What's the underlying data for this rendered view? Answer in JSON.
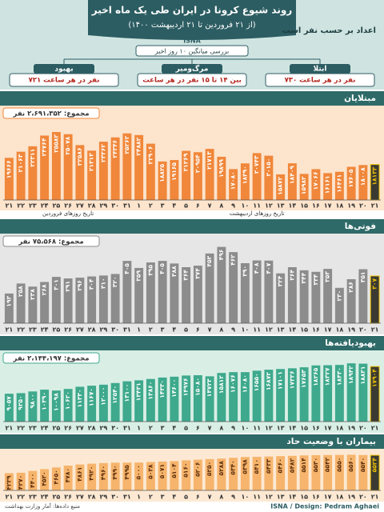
{
  "header": {
    "title": "روند شیوع کرونا در ایران طی یک ماه اخیر",
    "subtitle": "(از ۲۱ فروردین تا ۲۱ اردیبهشت ۱۴۰۰)",
    "brand": "ISNA",
    "units_note": "اعداد بر حسب نفر است",
    "average_title": "بررسی میانگین ۱۰ روز اخیر",
    "boxes": [
      {
        "title": "بهبود",
        "text": "۷۲۱ نفر در هر ساعت"
      },
      {
        "title": "مرگ‌ومیر",
        "text": "بین ۱۴ تا ۱۵ نفر در هر ساعت"
      },
      {
        "title": "ابتلا",
        "text": "۷۳۰ نفر در هر ساعت"
      }
    ]
  },
  "chart_data": [
    {
      "type": "bar",
      "title": "مبتلایان",
      "total": "مجموع: ۲،۶۹۱،۳۵۲ نفر",
      "color": "#f0873a",
      "x_labels": [
        "تاریخ روزهای فروردین",
        "تاریخ روزهای اردیبهشت"
      ],
      "categories": [
        "۲۱",
        "۲۲",
        "۲۳",
        "۲۴",
        "۲۵",
        "۲۶",
        "۲۷",
        "۲۸",
        "۲۹",
        "۳۰",
        "۳۱",
        "۱",
        "۲",
        "۳",
        "۴",
        "۵",
        "۶",
        "۷",
        "۸",
        "۹",
        "۱۰",
        "۱۱",
        "۱۲",
        "۱۳",
        "۱۴",
        "۱۵",
        "۱۶",
        "۱۷",
        "۱۸",
        "۱۹",
        "۲۰",
        "۲۱"
      ],
      "values": [
        19666,
        21063,
        22311,
        24764,
        25582,
        25078,
        22586,
        21313,
        23362,
        24346,
        25262,
        24882,
        22906,
        18825,
        19165,
        21269,
        20954,
        21713,
        19899,
        17080,
        18390,
        20743,
        20150,
        15872,
        18409,
        15982,
        17066,
        16161,
        16461,
        17605,
        18008,
        18133
      ],
      "value_labels": [
        "۱۹۶۶۶",
        "۲۱۰۶۳",
        "۲۲۳۱۱",
        "۲۴۷۶۴",
        "۲۵۵۸۲",
        "۲۵۰۷۸",
        "۲۲۵۸۶",
        "۲۱۳۱۳",
        "۲۳۳۶۲",
        "۲۴۳۴۶",
        "۲۵۲۶۲",
        "۲۴۸۸۲",
        "۲۲۹۰۶",
        "۱۸۸۲۵",
        "۱۹۱۶۵",
        "۲۱۲۶۹",
        "۲۰۹۵۴",
        "۲۱۷۱۳",
        "۱۹۸۹۹",
        "۱۷۰۸۰",
        "۱۸۳۹۰",
        "۲۰۷۴۳",
        "۲۰۱۵۰",
        "۱۵۸۷۲",
        "۱۸۴۰۹",
        "۱۵۹۸۲",
        "۱۷۰۶۶",
        "۱۶۱۶۱",
        "۱۶۴۶۱",
        "۱۷۶۰۵",
        "۱۸۰۰۸",
        "۱۸۱۳۳"
      ],
      "ylim": [
        10000,
        26500
      ]
    },
    {
      "type": "bar",
      "title": "فوتی‌ها",
      "total": "مجموع: ۷۵،۵۶۸ نفر",
      "color": "#8c8c8c",
      "categories": [
        "۲۱",
        "۲۲",
        "۲۳",
        "۲۴",
        "۲۵",
        "۲۶",
        "۲۷",
        "۲۸",
        "۲۹",
        "۳۰",
        "۳۱",
        "۱",
        "۲",
        "۳",
        "۴",
        "۵",
        "۶",
        "۷",
        "۸",
        "۹",
        "۱۰",
        "۱۱",
        "۱۲",
        "۱۳",
        "۱۴",
        "۱۵",
        "۱۶",
        "۱۷",
        "۱۸",
        "۱۹",
        "۲۰",
        "۲۱"
      ],
      "values": [
        193,
        258,
        238,
        268,
        301,
        291,
        296,
        304,
        310,
        320,
        405,
        359,
        395,
        405,
        388,
        364,
        374,
        453,
        496,
        462,
        390,
        408,
        407,
        324,
        364,
        344,
        334,
        353,
        230,
        286,
        351,
        307
      ],
      "value_labels": [
        "۱۹۳",
        "۲۵۸",
        "۲۳۸",
        "۲۶۸",
        "۳۰۱",
        "۲۹۱",
        "۲۹۶",
        "۳۰۴",
        "۳۱۰",
        "۳۲۰",
        "۴۰۵",
        "۳۵۹",
        "۳۹۵",
        "۴۰۵",
        "۳۸۸",
        "۳۶۴",
        "۳۷۴",
        "۴۵۳",
        "۴۹۶",
        "۴۶۲",
        "۳۹۰",
        "۴۰۸",
        "۴۰۷",
        "۳۲۴",
        "۳۶۴",
        "۳۴۴",
        "۳۳۴",
        "۳۵۳",
        "۲۳۰",
        "۲۸۶",
        "۳۵۱",
        "۳۰۷"
      ],
      "ylim": [
        0,
        520
      ]
    },
    {
      "type": "bar",
      "title": "بهبودیافته‌ها",
      "total": "مجموع: ۲،۱۴۴،۱۹۷ نفر",
      "color": "#3ea98c",
      "categories": [
        "۲۱",
        "۲۲",
        "۲۳",
        "۲۴",
        "۲۵",
        "۲۶",
        "۲۷",
        "۲۸",
        "۲۹",
        "۳۰",
        "۳۱",
        "۱",
        "۲",
        "۳",
        "۴",
        "۵",
        "۶",
        "۷",
        "۸",
        "۹",
        "۱۰",
        "۱۱",
        "۱۲",
        "۱۳",
        "۱۴",
        "۱۵",
        "۱۶",
        "۱۷",
        "۱۸",
        "۱۹",
        "۲۰",
        "۲۱"
      ],
      "values": [
        9057,
        9250,
        9800,
        10390,
        10098,
        10620,
        11330,
        11670,
        12000,
        12540,
        13100,
        13431,
        13860,
        14330,
        14600,
        14976,
        15080,
        14723,
        15812,
        16076,
        16080,
        16550,
        16872,
        17101,
        17336,
        17653,
        18265,
        18327,
        18430,
        18942,
        18831,
        17904
      ],
      "value_labels": [
        "۹۰۵۷",
        "۹۲۵۰",
        "۹۸۰۰",
        "۱۰۳۹۰",
        "۱۰۰۹۸",
        "۱۰۶۲۰",
        "۱۱۳۳۰",
        "۱۱۶۷۰",
        "۱۲۰۰۰",
        "۱۲۵۴۰",
        "۱۳۱۰۰",
        "۱۳۴۳۱",
        "۱۳۸۶۰",
        "۱۴۳۳۰",
        "۱۴۶۰۰",
        "۱۴۹۷۶",
        "۱۵۰۸۰",
        "۱۴۷۲۳",
        "۱۵۸۱۲",
        "۱۶۰۷۶",
        "۱۶۰۸۰",
        "۱۶۵۵۰",
        "۱۶۸۷۲",
        "۱۷۱۰۱",
        "۱۷۳۳۶",
        "۱۷۶۵۳",
        "۱۸۲۶۵",
        "۱۸۳۲۷",
        "۱۸۴۳۰",
        "۱۸۹۴۲",
        "۱۸۸۳۱",
        "۱۷۹۰۴"
      ],
      "ylim": [
        0,
        19500
      ]
    },
    {
      "type": "bar",
      "title": "بیماران با وضعیت حاد",
      "color": "#f6b46c",
      "categories": [
        "۲۱",
        "۲۲",
        "۲۳",
        "۲۴",
        "۲۵",
        "۲۶",
        "۲۷",
        "۲۸",
        "۲۹",
        "۳۰",
        "۳۱",
        "۱",
        "۲",
        "۳",
        "۴",
        "۵",
        "۶",
        "۷",
        "۸",
        "۹",
        "۱۰",
        "۱۱",
        "۱۲",
        "۱۳",
        "۱۴",
        "۱۵",
        "۱۶",
        "۱۷",
        "۱۸",
        "۱۹",
        "۲۰",
        "۲۱"
      ],
      "values": [
        4239,
        4270,
        4400,
        4530,
        4650,
        4780,
        4861,
        4920,
        4960,
        4990,
        4995,
        5000,
        5038,
        5071,
        5104,
        5160,
        5206,
        5250,
        5288,
        5340,
        5398,
        5410,
        5433,
        5460,
        5482,
        5514,
        5530,
        5542,
        5550,
        5560,
        5540,
        5524
      ],
      "value_labels": [
        "۴۲۳۹",
        "۴۲۷۰",
        "۴۴۰۰",
        "۴۵۳۰",
        "۴۶۵۰",
        "۴۷۸۰",
        "۴۸۶۱",
        "۴۹۲۰",
        "۴۹۶۰",
        "۴۹۹۰",
        "۴۹۹۵",
        "۵۰۰۰",
        "۵۰۳۸",
        "۵۰۷۱",
        "۵۱۰۴",
        "۵۱۶۰",
        "۵۲۰۶",
        "۵۲۵۰",
        "۵۲۸۸",
        "۵۳۴۰",
        "۵۳۹۸",
        "۵۴۱۰",
        "۵۴۳۳",
        "۵۴۶۰",
        "۵۴۸۲",
        "۵۵۱۴",
        "۵۵۳۰",
        "۵۵۴۲",
        "۵۵۵۰",
        "۵۵۶۰",
        "۵۵۴۰",
        "۵۵۲۴"
      ],
      "ylim": [
        3000,
        5700
      ]
    }
  ],
  "footer": {
    "source": "منبع داده‌ها: آمار وزارت بهداشت",
    "credit": "ISNA / Design: Pedram Aghaei"
  }
}
